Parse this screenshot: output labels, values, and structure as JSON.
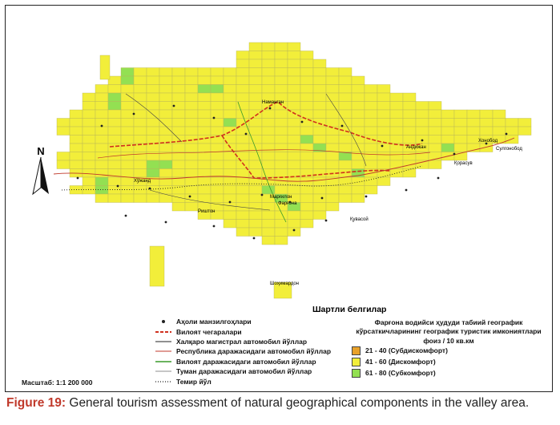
{
  "caption": {
    "label": "Figure 19:",
    "text": " General tourism assessment of natural geographical components in the valley area."
  },
  "north_arrow": {
    "letter": "N"
  },
  "legend": {
    "title": "Шартли белгилар",
    "symbols": [
      {
        "label": "Аҳоли манзилгоҳлари",
        "icon": "settlement-icon"
      },
      {
        "label": "Вилоят чегаралари",
        "icon": "region-border-icon"
      },
      {
        "label": "Халқаро магистрал автомобил йўллар",
        "icon": "international-road-icon"
      },
      {
        "label": "Республика даражасидаги автомобил йўллар",
        "icon": "republic-road-icon"
      },
      {
        "label": "Вилоят даражасидаги автомобил йўллар",
        "icon": "regional-road-icon"
      },
      {
        "label": "Туман даражасидаги автомобил йўллар",
        "icon": "district-road-icon"
      },
      {
        "label": "Темир йўл",
        "icon": "railway-icon"
      }
    ],
    "heading": "Фарғона водийси ҳудуди табиий географик кўрсаткичларининг географик туристик имкониятлари",
    "unit": "фоиз / 10 кв.км",
    "classes": [
      {
        "label": "21 - 40 (Субдискомфорт)",
        "color": "#e8a12a"
      },
      {
        "label": "41 - 60 (Дискомфорт)",
        "color": "#f2ee3a"
      },
      {
        "label": "61 - 80 (Субкомфорт)",
        "color": "#93e052"
      }
    ]
  },
  "scale": "Масштаб: 1:1 200 000",
  "cities": [
    "Наманган",
    "Андижан",
    "Хонобод",
    "Сулгонобод",
    "Қорасув",
    "Хўжанд",
    "Фарғона",
    "Марғилон",
    "Қувасой",
    "Риштон",
    "Шоҳимардон"
  ],
  "colors": {
    "comfort_yellow": "#f2ee3a",
    "subcomfort_green": "#93e052",
    "subdiscomfort_orange": "#e8a12a",
    "border_red": "#d0311e"
  }
}
